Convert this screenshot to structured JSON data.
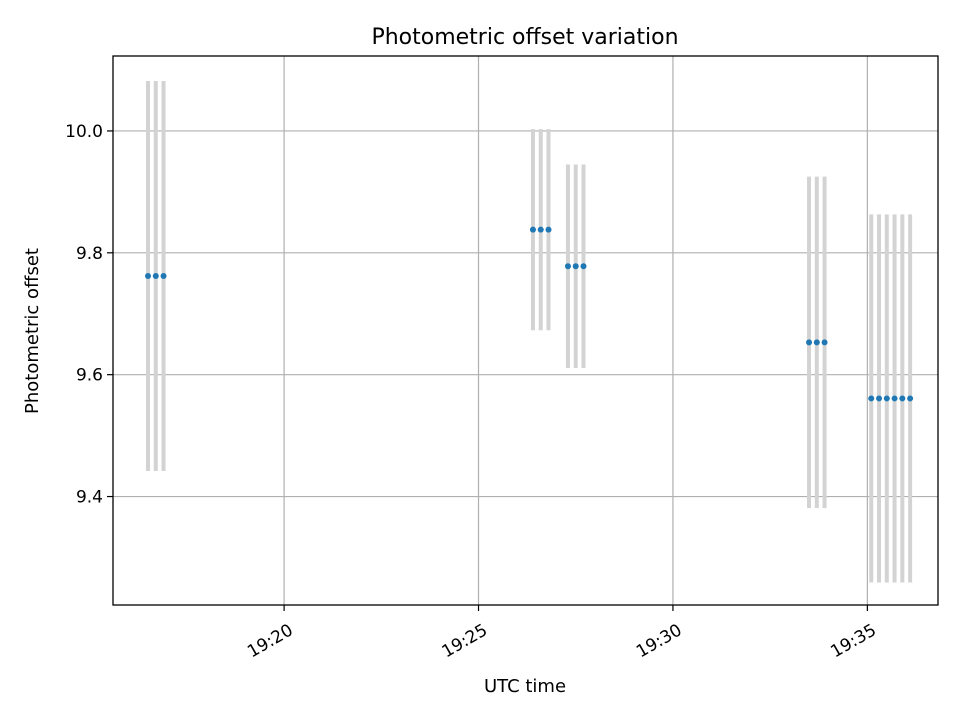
{
  "chart_data": {
    "type": "scatter",
    "title": "Photometric offset variation",
    "xlabel": "UTC time",
    "ylabel": "Photometric offset",
    "x_axis_type": "time",
    "xlim": [
      "19:15:36",
      "19:36:49"
    ],
    "ylim": [
      9.222,
      10.123
    ],
    "x_ticks": [
      "19:20",
      "19:25",
      "19:30",
      "19:35"
    ],
    "y_ticks": [
      9.4,
      9.6,
      9.8,
      10.0
    ],
    "y_tick_labels": [
      "9.4",
      "9.6",
      "9.8",
      "10.0"
    ],
    "grid": true,
    "colors": {
      "points": "#1f77b4",
      "errorbars": "#d3d3d3",
      "grid": "#b0b0b0"
    },
    "series": [
      {
        "points": [
          {
            "x": "19:16:30",
            "y": 9.762,
            "yerr": 0.32
          },
          {
            "x": "19:16:42",
            "y": 9.762,
            "yerr": 0.32
          },
          {
            "x": "19:16:54",
            "y": 9.762,
            "yerr": 0.32
          },
          {
            "x": "19:26:24",
            "y": 9.838,
            "yerr": 0.165
          },
          {
            "x": "19:26:36",
            "y": 9.838,
            "yerr": 0.165
          },
          {
            "x": "19:26:48",
            "y": 9.838,
            "yerr": 0.165
          },
          {
            "x": "19:27:18",
            "y": 9.778,
            "yerr": 0.167
          },
          {
            "x": "19:27:30",
            "y": 9.778,
            "yerr": 0.167
          },
          {
            "x": "19:27:42",
            "y": 9.778,
            "yerr": 0.167
          },
          {
            "x": "19:33:30",
            "y": 9.653,
            "yerr": 0.272
          },
          {
            "x": "19:33:42",
            "y": 9.653,
            "yerr": 0.272
          },
          {
            "x": "19:33:54",
            "y": 9.653,
            "yerr": 0.272
          },
          {
            "x": "19:35:06",
            "y": 9.561,
            "yerr": 0.302
          },
          {
            "x": "19:35:18",
            "y": 9.561,
            "yerr": 0.302
          },
          {
            "x": "19:35:30",
            "y": 9.561,
            "yerr": 0.302
          },
          {
            "x": "19:35:42",
            "y": 9.561,
            "yerr": 0.302
          },
          {
            "x": "19:35:54",
            "y": 9.561,
            "yerr": 0.302
          },
          {
            "x": "19:36:06",
            "y": 9.561,
            "yerr": 0.302
          }
        ]
      }
    ]
  }
}
